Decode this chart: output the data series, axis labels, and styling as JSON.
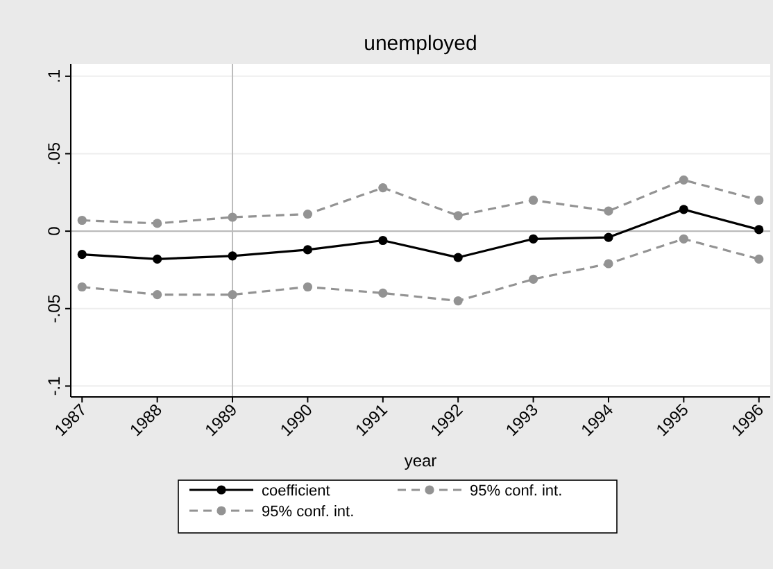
{
  "chart_data": {
    "type": "line",
    "title": "unemployed",
    "xlabel": "year",
    "x": [
      1987,
      1988,
      1989,
      1990,
      1991,
      1992,
      1993,
      1994,
      1995,
      1996
    ],
    "xlim": [
      1986.85,
      1996.15
    ],
    "xticks": [
      1987,
      1988,
      1989,
      1990,
      1991,
      1992,
      1993,
      1994,
      1995,
      1996
    ],
    "ylim": [
      -0.107,
      0.108
    ],
    "yticks": [
      {
        "value": -0.1,
        "label": "-.1"
      },
      {
        "value": -0.05,
        "label": "-.05"
      },
      {
        "value": 0,
        "label": "0"
      },
      {
        "value": 0.05,
        "label": ".05"
      },
      {
        "value": 0.1,
        "label": ".1"
      }
    ],
    "grid": "y",
    "legend": "bottom",
    "marker": "circle",
    "ref_lines": [
      {
        "axis": "y",
        "value": 0,
        "color": "#bbbbbb"
      },
      {
        "axis": "x",
        "value": 1989,
        "color": "#bbbbbb"
      }
    ],
    "series": [
      {
        "name": "coefficient",
        "color": "#000000",
        "line_style": "solid",
        "values": [
          -0.015,
          -0.018,
          -0.016,
          -0.012,
          -0.006,
          -0.017,
          -0.005,
          -0.004,
          0.014,
          0.001
        ]
      },
      {
        "name": "95% conf. int.",
        "color": "#939393",
        "line_style": "dashed",
        "values": [
          0.007,
          0.005,
          0.009,
          0.011,
          0.028,
          0.01,
          0.02,
          0.013,
          0.033,
          0.02
        ]
      },
      {
        "name": "95% conf. int.",
        "color": "#939393",
        "line_style": "dashed",
        "values": [
          -0.036,
          -0.041,
          -0.041,
          -0.036,
          -0.04,
          -0.045,
          -0.031,
          -0.021,
          -0.005,
          -0.018
        ]
      }
    ]
  }
}
